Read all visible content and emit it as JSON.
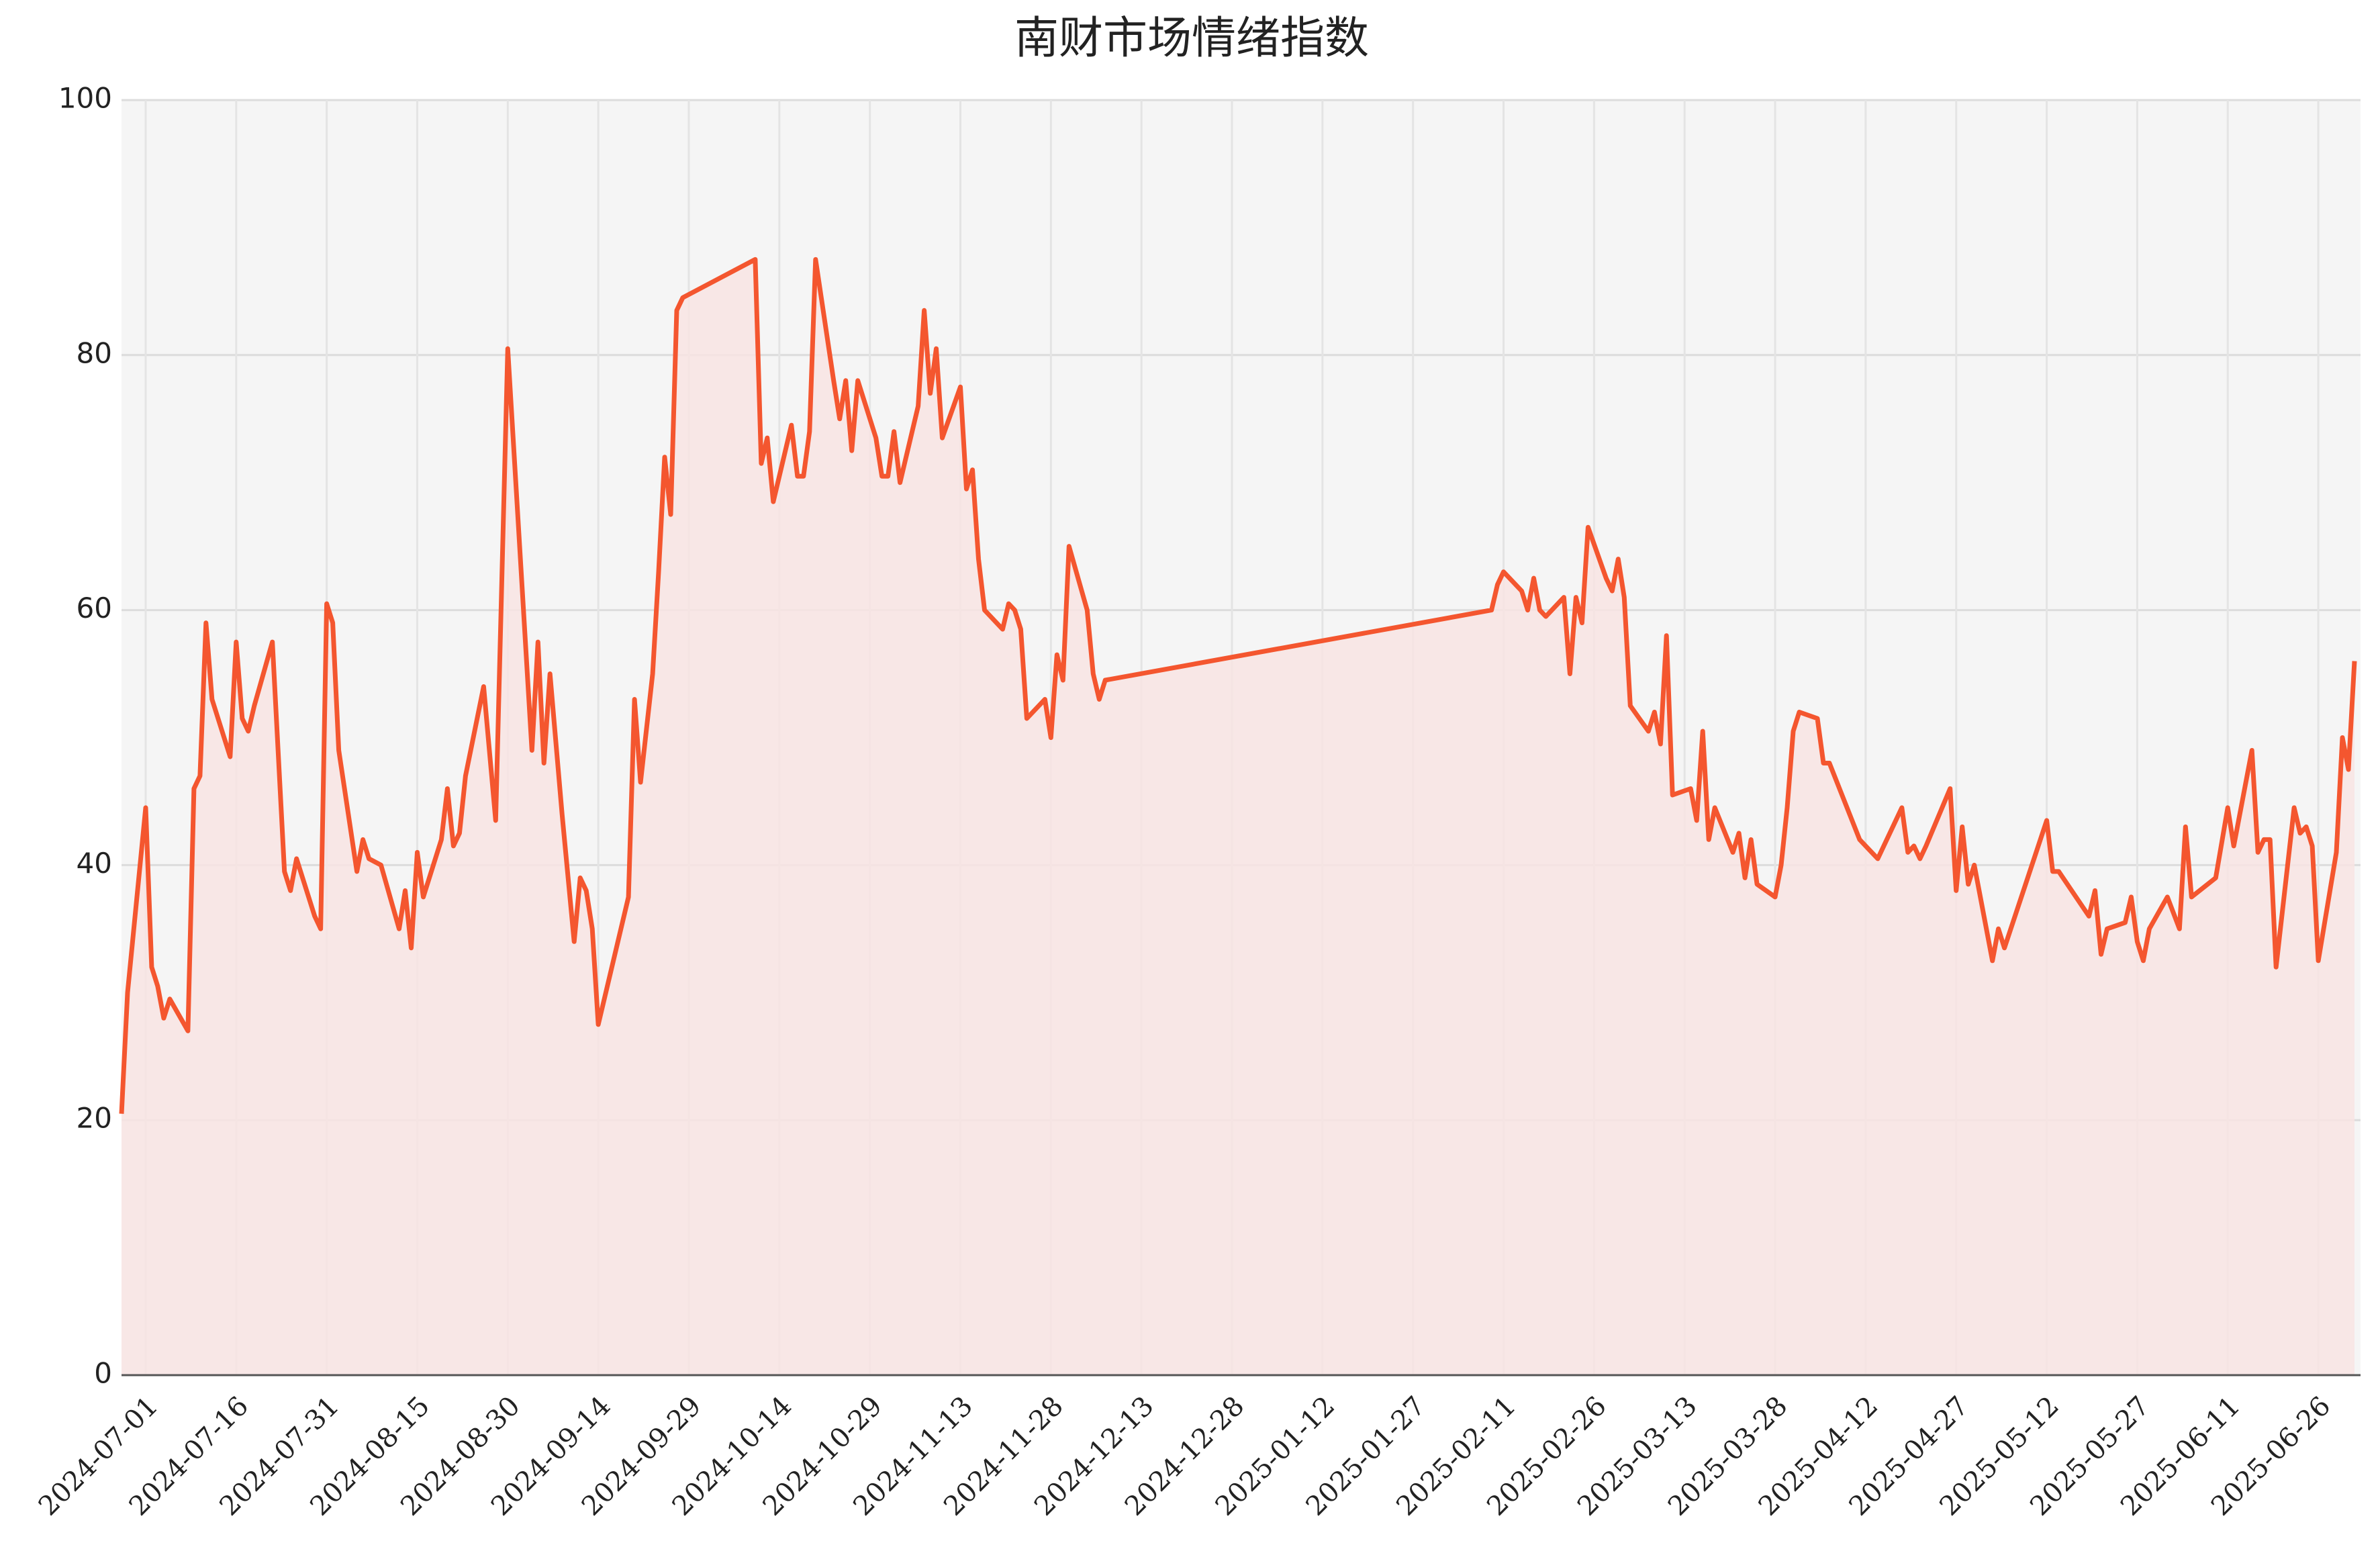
{
  "chart_data": {
    "type": "area-line",
    "title": "南财市场情绪指数",
    "x": [
      "2024-06-27",
      "2024-06-28",
      "2024-07-01",
      "2024-07-02",
      "2024-07-03",
      "2024-07-04",
      "2024-07-05",
      "2024-07-08",
      "2024-07-09",
      "2024-07-10",
      "2024-07-11",
      "2024-07-12",
      "2024-07-15",
      "2024-07-16",
      "2024-07-17",
      "2024-07-18",
      "2024-07-19",
      "2024-07-22",
      "2024-07-24",
      "2024-07-25",
      "2024-07-26",
      "2024-07-29",
      "2024-07-30",
      "2024-07-31",
      "2024-08-01",
      "2024-08-02",
      "2024-08-05",
      "2024-08-06",
      "2024-08-07",
      "2024-08-09",
      "2024-08-12",
      "2024-08-13",
      "2024-08-14",
      "2024-08-15",
      "2024-08-16",
      "2024-08-19",
      "2024-08-20",
      "2024-08-21",
      "2024-08-22",
      "2024-08-23",
      "2024-08-26",
      "2024-08-28",
      "2024-08-30",
      "2024-09-03",
      "2024-09-04",
      "2024-09-05",
      "2024-09-06",
      "2024-09-08",
      "2024-09-10",
      "2024-09-11",
      "2024-09-12",
      "2024-09-13",
      "2024-09-14",
      "2024-09-19",
      "2024-09-20",
      "2024-09-21",
      "2024-09-23",
      "2024-09-24",
      "2024-09-25",
      "2024-09-26",
      "2024-09-27",
      "2024-09-28",
      "2024-10-10",
      "2024-10-11",
      "2024-10-12",
      "2024-10-13",
      "2024-10-15",
      "2024-10-16",
      "2024-10-17",
      "2024-10-18",
      "2024-10-19",
      "2024-10-20",
      "2024-10-23",
      "2024-10-24",
      "2024-10-25",
      "2024-10-26",
      "2024-10-27",
      "2024-10-30",
      "2024-10-31",
      "2024-11-01",
      "2024-11-02",
      "2024-11-03",
      "2024-11-06",
      "2024-11-07",
      "2024-11-08",
      "2024-11-09",
      "2024-11-10",
      "2024-11-13",
      "2024-11-14",
      "2024-11-15",
      "2024-11-16",
      "2024-11-17",
      "2024-11-20",
      "2024-11-21",
      "2024-11-22",
      "2024-11-23",
      "2024-11-24",
      "2024-11-27",
      "2024-11-28",
      "2024-11-29",
      "2024-11-30",
      "2024-12-01",
      "2024-12-04",
      "2024-12-05",
      "2024-12-06",
      "2024-12-07",
      "2025-02-09",
      "2025-02-10",
      "2025-02-11",
      "2025-02-14",
      "2025-02-15",
      "2025-02-16",
      "2025-02-17",
      "2025-02-18",
      "2025-02-21",
      "2025-02-22",
      "2025-02-23",
      "2025-02-24",
      "2025-02-25",
      "2025-02-28",
      "2025-03-01",
      "2025-03-02",
      "2025-03-03",
      "2025-03-04",
      "2025-03-07",
      "2025-03-08",
      "2025-03-09",
      "2025-03-10",
      "2025-03-11",
      "2025-03-14",
      "2025-03-15",
      "2025-03-16",
      "2025-03-17",
      "2025-03-18",
      "2025-03-21",
      "2025-03-22",
      "2025-03-23",
      "2025-03-24",
      "2025-03-25",
      "2025-03-28",
      "2025-03-29",
      "2025-03-30",
      "2025-03-31",
      "2025-04-01",
      "2025-04-04",
      "2025-04-05",
      "2025-04-06",
      "2025-04-11",
      "2025-04-14",
      "2025-04-18",
      "2025-04-19",
      "2025-04-20",
      "2025-04-21",
      "2025-04-22",
      "2025-04-26",
      "2025-04-27",
      "2025-04-28",
      "2025-04-29",
      "2025-04-30",
      "2025-05-03",
      "2025-05-04",
      "2025-05-05",
      "2025-05-12",
      "2025-05-13",
      "2025-05-14",
      "2025-05-19",
      "2025-05-20",
      "2025-05-21",
      "2025-05-22",
      "2025-05-25",
      "2025-05-26",
      "2025-05-27",
      "2025-05-28",
      "2025-05-29",
      "2025-06-01",
      "2025-06-03",
      "2025-06-04",
      "2025-06-05",
      "2025-06-09",
      "2025-06-11",
      "2025-06-12",
      "2025-06-15",
      "2025-06-16",
      "2025-06-17",
      "2025-06-18",
      "2025-06-19",
      "2025-06-22",
      "2025-06-23",
      "2025-06-24",
      "2025-06-25",
      "2025-06-26",
      "2025-06-29",
      "2025-06-30",
      "2025-07-01",
      "2025-07-02"
    ],
    "values": [
      20.5,
      30,
      44.5,
      32,
      30.5,
      28,
      29.5,
      27,
      46,
      47,
      59,
      53,
      48.5,
      57.5,
      51.5,
      50.5,
      52.5,
      57.5,
      39.5,
      38,
      40.5,
      36,
      35,
      60.5,
      59,
      49,
      39.5,
      42,
      40.5,
      40,
      35,
      38,
      33.5,
      41,
      37.5,
      42,
      46,
      41.5,
      42.5,
      47,
      54,
      43.5,
      80.5,
      49,
      57.5,
      48,
      55,
      44,
      34,
      39,
      38,
      35,
      27.5,
      37.5,
      53,
      46.5,
      55,
      63,
      72,
      67.5,
      83.5,
      84.5,
      87.5,
      71.5,
      73.5,
      68.5,
      72.5,
      74.5,
      70.5,
      70.5,
      74,
      87.5,
      78,
      75,
      78,
      72.5,
      78,
      73.5,
      70.5,
      70.5,
      74,
      70,
      76,
      83.5,
      77,
      80.5,
      73.5,
      77.5,
      69.5,
      71,
      64,
      60,
      58.5,
      60.5,
      60,
      58.5,
      51.5,
      53,
      50,
      56.5,
      54.5,
      65,
      60,
      55,
      53,
      54.5,
      60,
      62,
      63,
      61.5,
      60,
      62.5,
      60,
      59.5,
      61,
      55,
      61,
      59,
      66.5,
      62.5,
      61.5,
      64,
      61,
      52.5,
      50.5,
      52,
      49.5,
      58,
      45.5,
      46,
      43.5,
      50.5,
      42,
      44.5,
      41,
      42.5,
      39,
      42,
      38.5,
      37.5,
      40,
      44.5,
      50.5,
      52,
      51.5,
      48,
      48,
      42,
      40.5,
      44.5,
      41,
      41.5,
      40.5,
      41.5,
      46,
      38,
      43,
      38.5,
      40,
      32.5,
      35,
      33.5,
      43.5,
      39.5,
      39.5,
      36,
      38,
      33,
      35,
      35.5,
      37.5,
      34,
      32.5,
      35,
      37.5,
      35,
      43,
      37.5,
      39,
      44.5,
      41.5,
      49,
      41,
      42,
      42,
      32,
      44.5,
      42.5,
      43,
      41.5,
      32.5,
      41,
      50,
      47.5,
      56
    ],
    "color": "#f4562f",
    "fill": "#f8e4e3",
    "background": "#f5f5f5",
    "grid": true,
    "xlim": [
      "2024-06-27",
      "2025-07-03"
    ],
    "xticks": [
      "2024-07-01",
      "2024-07-16",
      "2024-07-31",
      "2024-08-15",
      "2024-08-30",
      "2024-09-14",
      "2024-09-29",
      "2024-10-14",
      "2024-10-29",
      "2024-11-13",
      "2024-11-28",
      "2024-12-13",
      "2024-12-28",
      "2025-01-12",
      "2025-01-27",
      "2025-02-11",
      "2025-02-26",
      "2025-03-13",
      "2025-03-28",
      "2025-04-12",
      "2025-04-27",
      "2025-05-12",
      "2025-05-27",
      "2025-06-11",
      "2025-06-26"
    ],
    "ylim": [
      0,
      100
    ],
    "yticks": [
      0,
      20,
      40,
      60,
      80,
      100
    ]
  }
}
